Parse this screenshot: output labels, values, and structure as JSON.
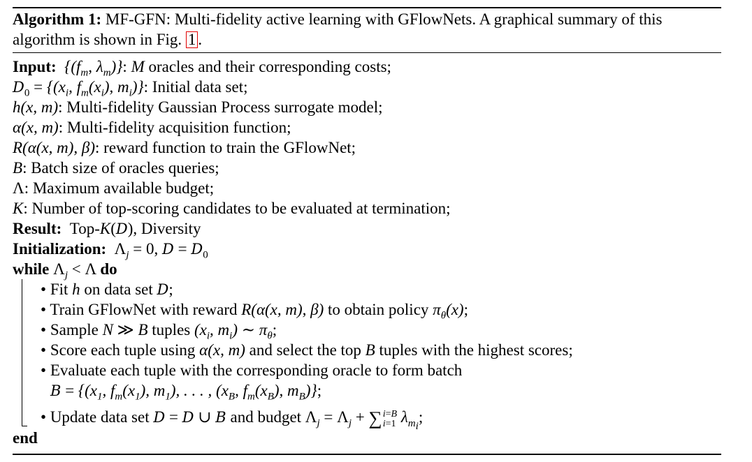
{
  "algorithm": {
    "label": "Algorithm 1:",
    "caption_text": "MF-GFN: Multi-fidelity active learning with GFlowNets. A graphical summary of this algorithm is shown in Fig.",
    "figure_ref": "1",
    "caption_end": "."
  },
  "input": {
    "keyword": "Input:",
    "lines": [
      "oracles and their corresponding costs;",
      ": Initial data set;",
      ": Multi-fidelity Gaussian Process surrogate model;",
      ": Multi-fidelity acquisition function;",
      ": reward function to train the GFlowNet;",
      ": Batch size of oracles queries;",
      ": Maximum available budget;",
      ": Number of top-scoring candidates to be evaluated at termination;"
    ]
  },
  "result": {
    "keyword": "Result:",
    "text_prefix": "Top-",
    "text_suffix": ", Diversity"
  },
  "initialization": {
    "keyword": "Initialization:"
  },
  "loop": {
    "while_kw": "while",
    "do_kw": "do",
    "end_kw": "end",
    "steps": {
      "fit_a": "Fit",
      "fit_b": "on data set",
      "fit_c": ";",
      "train_a": "Train GFlowNet with reward",
      "train_b": "to obtain policy",
      "train_c": ";",
      "sample_a": "Sample",
      "sample_b": "tuples",
      "score_a": "Score each tuple using",
      "score_b": "and select the top",
      "score_c": "tuples with the highest scores;",
      "eval_a": "Evaluate each tuple with the corresponding oracle to form batch",
      "update_a": "Update data set",
      "update_b": "and budget"
    }
  }
}
